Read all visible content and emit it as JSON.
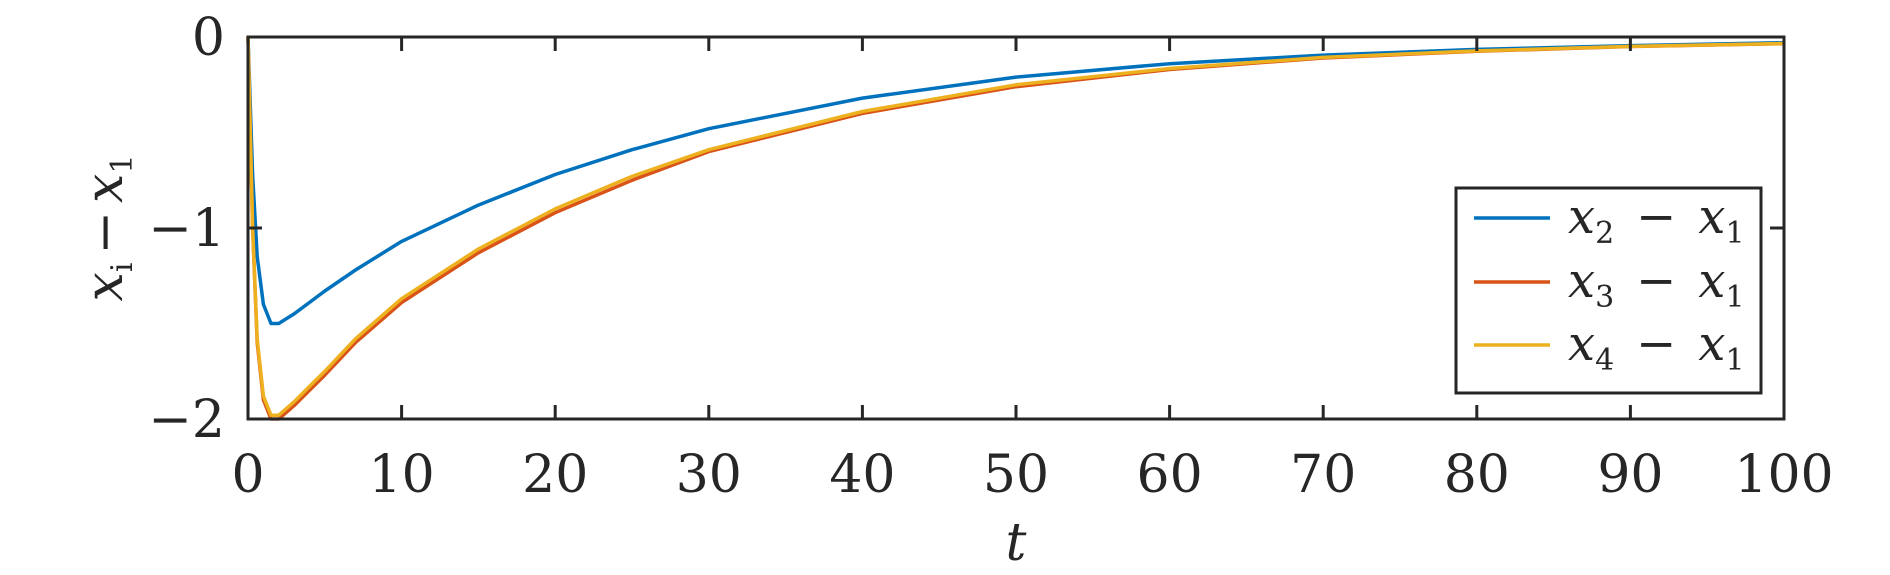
{
  "chart_data": {
    "type": "line",
    "xlabel": "t",
    "ylabel": {
      "base": "x",
      "sub1": "i",
      "op": "−",
      "base2": "x",
      "sub2": "1"
    },
    "xlim": [
      0,
      100
    ],
    "ylim": [
      -2,
      0
    ],
    "x_ticks": [
      0,
      10,
      20,
      30,
      40,
      50,
      60,
      70,
      80,
      90,
      100
    ],
    "x_tick_labels": [
      "0",
      "10",
      "20",
      "30",
      "40",
      "50",
      "60",
      "70",
      "80",
      "90",
      "100"
    ],
    "y_ticks": [
      0,
      -1,
      -2
    ],
    "y_tick_labels": [
      "0",
      "−1",
      "−2"
    ],
    "grid": false,
    "legend_position": "bottom-right",
    "series": [
      {
        "name": "x2 − x1",
        "legend": {
          "a": "x",
          "a_sub": "2",
          "op": "−",
          "b": "x",
          "b_sub": "1"
        },
        "color": "#0072BD",
        "x": [
          0,
          0.3,
          0.6,
          1,
          1.5,
          2,
          3,
          4,
          5,
          7,
          10,
          15,
          20,
          25,
          30,
          40,
          50,
          60,
          70,
          80,
          90,
          100
        ],
        "y": [
          0,
          -0.72,
          -1.15,
          -1.4,
          -1.5,
          -1.5,
          -1.45,
          -1.39,
          -1.33,
          -1.22,
          -1.07,
          -0.88,
          -0.72,
          -0.59,
          -0.48,
          -0.32,
          -0.21,
          -0.14,
          -0.095,
          -0.065,
          -0.045,
          -0.03
        ]
      },
      {
        "name": "x3 − x1",
        "legend": {
          "a": "x",
          "a_sub": "3",
          "op": "−",
          "b": "x",
          "b_sub": "1"
        },
        "color": "#D95319",
        "x": [
          0,
          0.3,
          0.6,
          1,
          1.5,
          2,
          3,
          4,
          5,
          7,
          10,
          15,
          20,
          25,
          30,
          40,
          50,
          60,
          70,
          80,
          90,
          100
        ],
        "y": [
          0,
          -1.0,
          -1.6,
          -1.9,
          -2.0,
          -2.0,
          -1.93,
          -1.85,
          -1.77,
          -1.6,
          -1.39,
          -1.13,
          -0.92,
          -0.75,
          -0.6,
          -0.4,
          -0.26,
          -0.17,
          -0.11,
          -0.075,
          -0.05,
          -0.035
        ]
      },
      {
        "name": "x4 − x1",
        "legend": {
          "a": "x",
          "a_sub": "4",
          "op": "−",
          "b": "x",
          "b_sub": "1"
        },
        "color": "#EDB120",
        "x": [
          0,
          0.3,
          0.6,
          1,
          1.5,
          2,
          3,
          4,
          5,
          7,
          10,
          15,
          20,
          25,
          30,
          40,
          50,
          60,
          70,
          80,
          90,
          100
        ],
        "y": [
          0,
          -1.0,
          -1.58,
          -1.88,
          -1.98,
          -1.98,
          -1.91,
          -1.83,
          -1.75,
          -1.58,
          -1.37,
          -1.11,
          -0.9,
          -0.73,
          -0.59,
          -0.39,
          -0.25,
          -0.165,
          -0.107,
          -0.073,
          -0.049,
          -0.034
        ]
      }
    ]
  }
}
